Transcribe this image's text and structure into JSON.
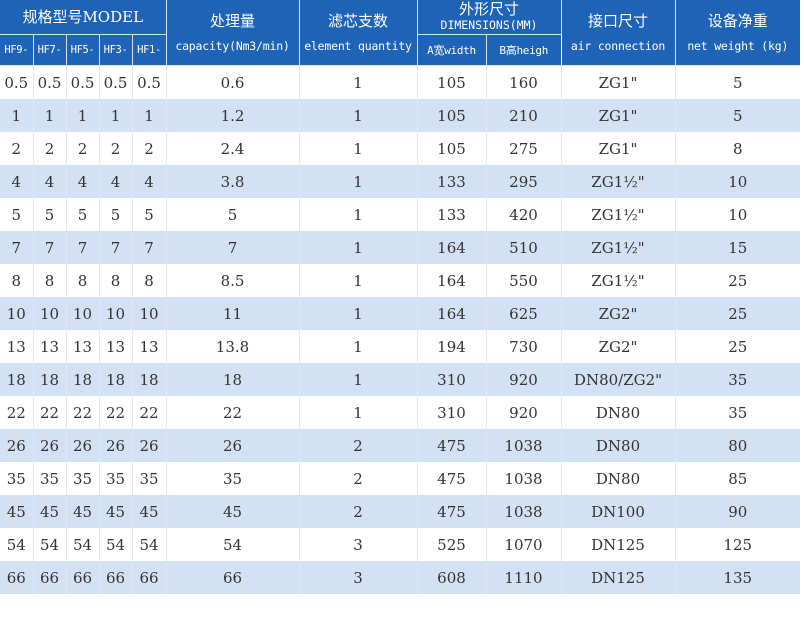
{
  "header": {
    "model": "规格型号MODEL",
    "model_subs": [
      "HF9-",
      "HF7-",
      "HF5-",
      "HF3-",
      "HF1-"
    ],
    "capacity_cn": "处理量",
    "capacity_en": "capacity(Nm3/min)",
    "element_cn": "滤芯支数",
    "element_en": "element quantity",
    "dim_cn": "外形尺寸",
    "dim_en": "DIMENSIONS(MM)",
    "dim_a": "A宽width",
    "dim_b": "B高heigh",
    "air_cn": "接口尺寸",
    "air_en": "air connection",
    "weight_cn": "设备净重",
    "weight_en": "net weight (kg)"
  },
  "rows": [
    [
      "0.5",
      "0.5",
      "0.5",
      "0.5",
      "0.5",
      "0.6",
      "1",
      "105",
      "160",
      "ZG1\"",
      "5"
    ],
    [
      "1",
      "1",
      "1",
      "1",
      "1",
      "1.2",
      "1",
      "105",
      "210",
      "ZG1\"",
      "5"
    ],
    [
      "2",
      "2",
      "2",
      "2",
      "2",
      "2.4",
      "1",
      "105",
      "275",
      "ZG1\"",
      "8"
    ],
    [
      "4",
      "4",
      "4",
      "4",
      "4",
      "3.8",
      "1",
      "133",
      "295",
      "ZG1½\"",
      "10"
    ],
    [
      "5",
      "5",
      "5",
      "5",
      "5",
      "5",
      "1",
      "133",
      "420",
      "ZG1½\"",
      "10"
    ],
    [
      "7",
      "7",
      "7",
      "7",
      "7",
      "7",
      "1",
      "164",
      "510",
      "ZG1½\"",
      "15"
    ],
    [
      "8",
      "8",
      "8",
      "8",
      "8",
      "8.5",
      "1",
      "164",
      "550",
      "ZG1½\"",
      "25"
    ],
    [
      "10",
      "10",
      "10",
      "10",
      "10",
      "11",
      "1",
      "164",
      "625",
      "ZG2\"",
      "25"
    ],
    [
      "13",
      "13",
      "13",
      "13",
      "13",
      "13.8",
      "1",
      "194",
      "730",
      "ZG2\"",
      "25"
    ],
    [
      "18",
      "18",
      "18",
      "18",
      "18",
      "18",
      "1",
      "310",
      "920",
      "DN80/ZG2\"",
      "35"
    ],
    [
      "22",
      "22",
      "22",
      "22",
      "22",
      "22",
      "1",
      "310",
      "920",
      "DN80",
      "35"
    ],
    [
      "26",
      "26",
      "26",
      "26",
      "26",
      "26",
      "2",
      "475",
      "1038",
      "DN80",
      "80"
    ],
    [
      "35",
      "35",
      "35",
      "35",
      "35",
      "35",
      "2",
      "475",
      "1038",
      "DN80",
      "85"
    ],
    [
      "45",
      "45",
      "45",
      "45",
      "45",
      "45",
      "2",
      "475",
      "1038",
      "DN100",
      "90"
    ],
    [
      "54",
      "54",
      "54",
      "54",
      "54",
      "54",
      "3",
      "525",
      "1070",
      "DN125",
      "125"
    ],
    [
      "66",
      "66",
      "66",
      "66",
      "66",
      "66",
      "3",
      "608",
      "1110",
      "DN125",
      "135"
    ]
  ]
}
